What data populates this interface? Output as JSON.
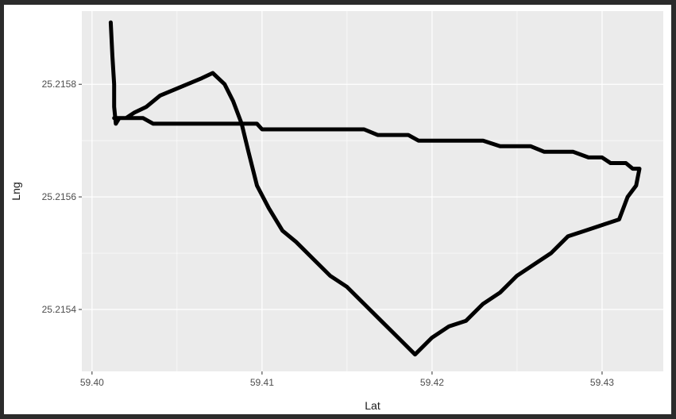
{
  "chart_data": {
    "type": "line",
    "title": "",
    "xlabel": "Lat",
    "ylabel": "Lng",
    "xlim": [
      59.3994,
      59.4336
    ],
    "ylim": [
      25.21529,
      25.21593
    ],
    "x_ticks": [
      59.4,
      59.41,
      59.42,
      59.43
    ],
    "x_tick_labels": [
      "59.40",
      "59.41",
      "59.42",
      "59.43"
    ],
    "y_ticks": [
      25.2154,
      25.2156,
      25.2158
    ],
    "y_tick_labels": [
      "25.2154",
      "25.2156",
      "25.2158"
    ],
    "grid": true,
    "legend": "none",
    "colors": {
      "panel": "#ebebeb",
      "grid": "#ffffff",
      "line": "#000000"
    },
    "series": [
      {
        "x": [
          59.4011,
          59.4012,
          59.4013,
          59.4013,
          59.4014,
          59.4016,
          59.402,
          59.4025,
          59.4032,
          59.404,
          59.4048,
          59.4056,
          59.4064,
          59.4071,
          59.4078,
          59.4083,
          59.4088,
          59.4092,
          59.4097,
          59.4104,
          59.4112,
          59.412,
          59.413,
          59.414,
          59.415,
          59.416,
          59.417,
          59.418,
          59.419,
          59.42,
          59.421,
          59.422,
          59.423,
          59.424,
          59.425,
          59.426,
          59.427,
          59.428,
          59.429,
          59.43,
          59.431,
          59.4315,
          59.432,
          59.4322,
          59.4321,
          59.4318,
          59.4314,
          59.431,
          59.4305,
          59.43,
          59.4292,
          59.4283,
          59.4275,
          59.4266,
          59.4258,
          59.425,
          59.424,
          59.423,
          59.422,
          59.421,
          59.42,
          59.4192,
          59.4186,
          59.4183,
          59.418,
          59.4175,
          59.4168,
          59.416,
          59.4152,
          59.4145,
          59.4138,
          59.413,
          59.4122,
          59.4115,
          59.4108,
          59.4103,
          59.41,
          59.4097,
          59.4093,
          59.4088,
          59.4083,
          59.4078,
          59.4074,
          59.407,
          59.4066,
          59.406,
          59.4054,
          59.4048,
          59.4042,
          59.4036,
          59.403,
          59.4025,
          59.402,
          59.4015,
          59.4013
        ],
        "y": [
          25.21591,
          25.21585,
          25.2158,
          25.21576,
          25.21573,
          25.21574,
          25.21574,
          25.21575,
          25.21576,
          25.21578,
          25.21579,
          25.2158,
          25.21581,
          25.21582,
          25.2158,
          25.21577,
          25.21573,
          25.21568,
          25.21562,
          25.21558,
          25.21554,
          25.21552,
          25.21549,
          25.21546,
          25.21544,
          25.21541,
          25.21538,
          25.21535,
          25.21532,
          25.21535,
          25.21537,
          25.21538,
          25.21541,
          25.21543,
          25.21546,
          25.21548,
          25.2155,
          25.21553,
          25.21554,
          25.21555,
          25.21556,
          25.2156,
          25.21562,
          25.21565,
          25.21565,
          25.21565,
          25.21566,
          25.21566,
          25.21566,
          25.21567,
          25.21567,
          25.21568,
          25.21568,
          25.21568,
          25.21569,
          25.21569,
          25.21569,
          25.2157,
          25.2157,
          25.2157,
          25.2157,
          25.2157,
          25.21571,
          25.21571,
          25.21571,
          25.21571,
          25.21571,
          25.21572,
          25.21572,
          25.21572,
          25.21572,
          25.21572,
          25.21572,
          25.21572,
          25.21572,
          25.21572,
          25.21572,
          25.21573,
          25.21573,
          25.21573,
          25.21573,
          25.21573,
          25.21573,
          25.21573,
          25.21573,
          25.21573,
          25.21573,
          25.21573,
          25.21573,
          25.21573,
          25.21574,
          25.21574,
          25.21574,
          25.21574,
          25.21574
        ]
      }
    ]
  }
}
